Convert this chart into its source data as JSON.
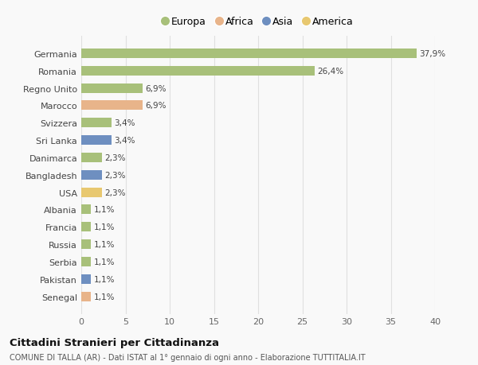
{
  "countries": [
    "Germania",
    "Romania",
    "Regno Unito",
    "Marocco",
    "Svizzera",
    "Sri Lanka",
    "Danimarca",
    "Bangladesh",
    "USA",
    "Albania",
    "Francia",
    "Russia",
    "Serbia",
    "Pakistan",
    "Senegal"
  ],
  "values": [
    37.9,
    26.4,
    6.9,
    6.9,
    3.4,
    3.4,
    2.3,
    2.3,
    2.3,
    1.1,
    1.1,
    1.1,
    1.1,
    1.1,
    1.1
  ],
  "labels": [
    "37,9%",
    "26,4%",
    "6,9%",
    "6,9%",
    "3,4%",
    "3,4%",
    "2,3%",
    "2,3%",
    "2,3%",
    "1,1%",
    "1,1%",
    "1,1%",
    "1,1%",
    "1,1%",
    "1,1%"
  ],
  "colors": [
    "#a8c07a",
    "#a8c07a",
    "#a8c07a",
    "#e8b48a",
    "#a8c07a",
    "#6e8fc0",
    "#a8c07a",
    "#6e8fc0",
    "#e8c870",
    "#a8c07a",
    "#a8c07a",
    "#a8c07a",
    "#a8c07a",
    "#6e8fc0",
    "#e8b48a"
  ],
  "legend_labels": [
    "Europa",
    "Africa",
    "Asia",
    "America"
  ],
  "legend_colors": [
    "#a8c07a",
    "#e8b48a",
    "#6e8fc0",
    "#e8c870"
  ],
  "title": "Cittadini Stranieri per Cittadinanza",
  "subtitle": "COMUNE DI TALLA (AR) - Dati ISTAT al 1° gennaio di ogni anno - Elaborazione TUTTITALIA.IT",
  "xlim": [
    0,
    40
  ],
  "xticks": [
    0,
    5,
    10,
    15,
    20,
    25,
    30,
    35,
    40
  ],
  "bg_color": "#f9f9f9",
  "grid_color": "#e0e0e0"
}
